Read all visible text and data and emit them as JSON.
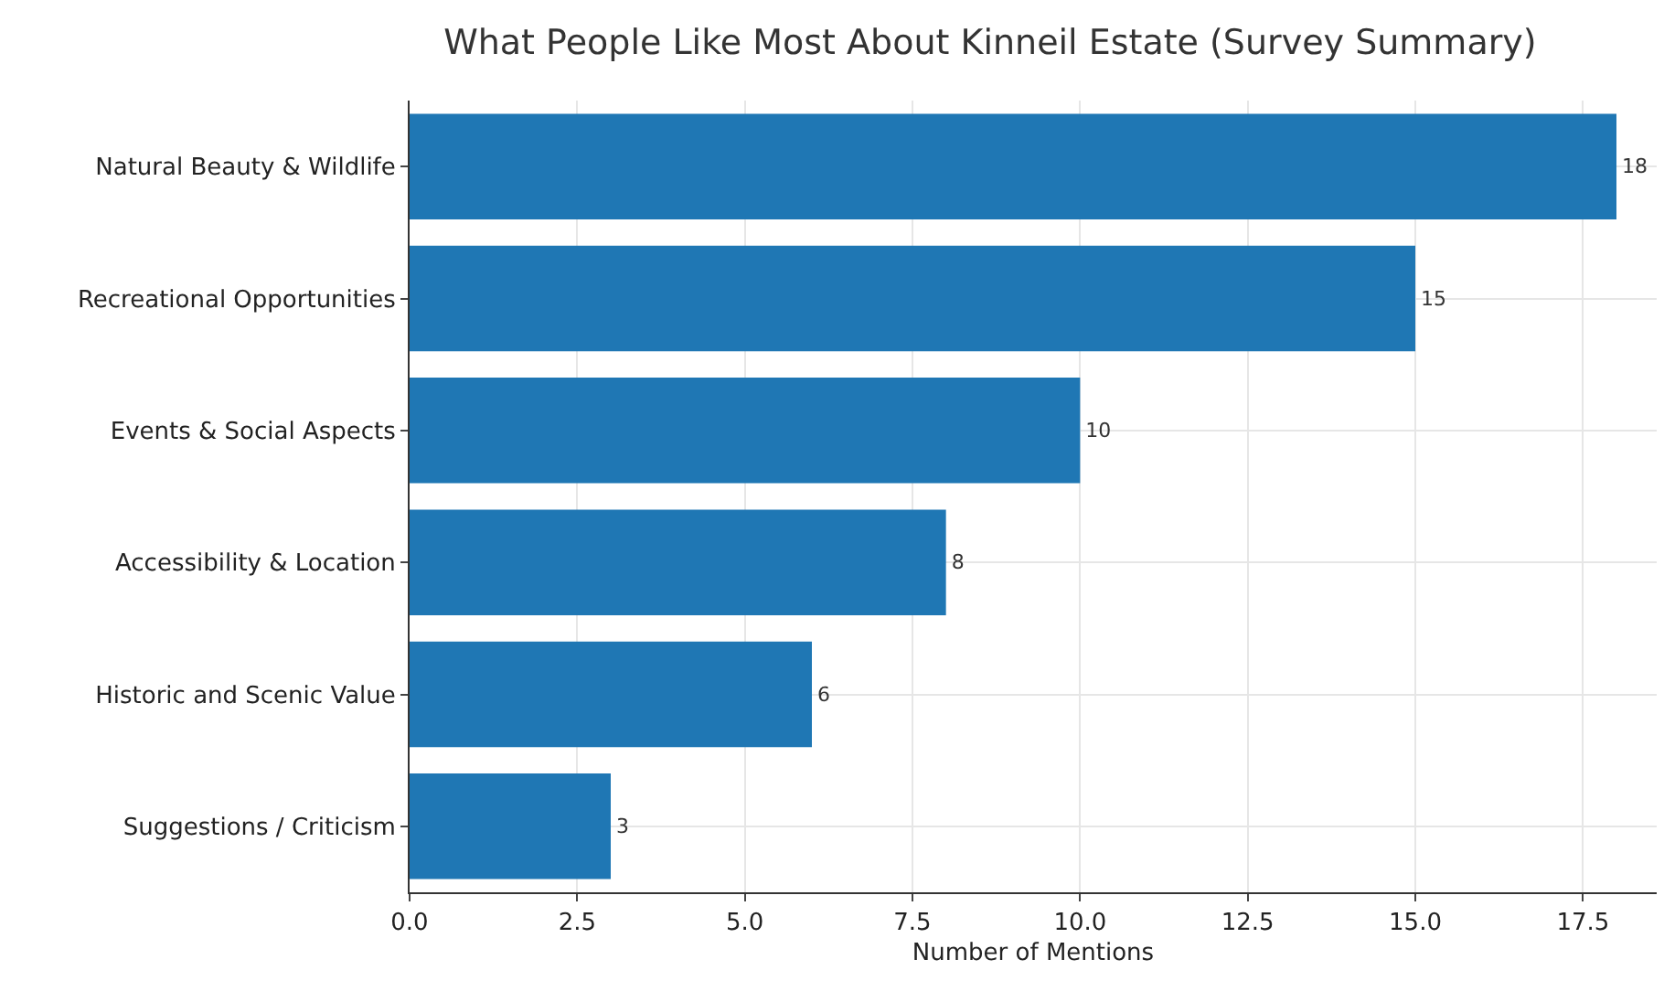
{
  "chart_data": {
    "type": "bar",
    "orientation": "horizontal",
    "title": "What People Like Most About Kinneil Estate (Survey Summary)",
    "xlabel": "Number of Mentions",
    "categories": [
      "Natural Beauty & Wildlife",
      "Recreational Opportunities",
      "Events & Social Aspects",
      "Accessibility & Location",
      "Historic and Scenic Value",
      "Suggestions / Criticism"
    ],
    "values": [
      18,
      15,
      10,
      8,
      6,
      3
    ],
    "color": "#1f77b4",
    "data_labels": true,
    "grid": true,
    "xlim": [
      0,
      18.6
    ],
    "xticks": [
      {
        "value": 0,
        "label": "0.0"
      },
      {
        "value": 2.5,
        "label": "2.5"
      },
      {
        "value": 5,
        "label": "5.0"
      },
      {
        "value": 7.5,
        "label": "7.5"
      },
      {
        "value": 10,
        "label": "10.0"
      },
      {
        "value": 12.5,
        "label": "12.5"
      },
      {
        "value": 15,
        "label": "15.0"
      },
      {
        "value": 17.5,
        "label": "17.5"
      }
    ]
  }
}
